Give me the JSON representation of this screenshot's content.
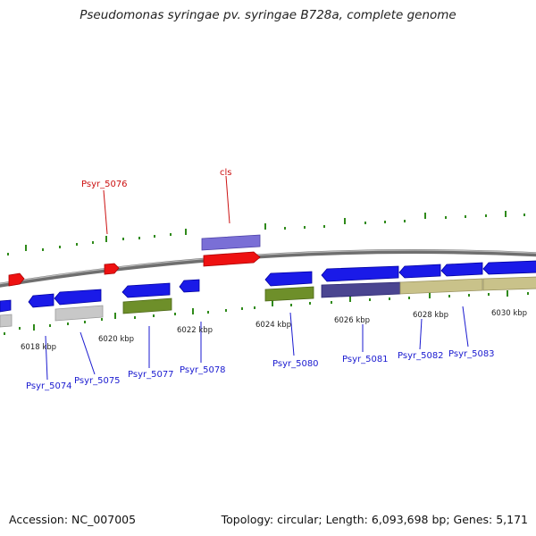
{
  "title": "Pseudomonas syringae pv. syringae B728a, complete genome",
  "footer": {
    "accession": "Accession: NC_007005",
    "summary": "Topology: circular; Length: 6,093,698 bp; Genes: 5,171"
  },
  "colors": {
    "forward_gene_red": "#ee1111",
    "reverse_gene_blue": "#1a1ae8",
    "highlight_purple": "#7a6fd6",
    "olive": "#6e8f2a",
    "khaki": "#c9c28a",
    "navy": "#4a4590",
    "grey_gene": "#c8c8c8",
    "backbone": "#888888",
    "tick_green": "#2f8a1a",
    "label_blue": "#1a1ad0",
    "label_red": "#cc1111"
  },
  "scale_labels": [
    "6018 kbp",
    "6020 kbp",
    "6022 kbp",
    "6024 kbp",
    "6026 kbp",
    "6028 kbp",
    "6030 kbp"
  ],
  "gene_labels": [
    {
      "text": "Psyr_5076",
      "color": "red"
    },
    {
      "text": "cls",
      "color": "red"
    },
    {
      "text": "Psyr_5074",
      "color": "blue"
    },
    {
      "text": "Psyr_5075",
      "color": "blue"
    },
    {
      "text": "Psyr_5077",
      "color": "blue"
    },
    {
      "text": "Psyr_5078",
      "color": "blue"
    },
    {
      "text": "Psyr_5080",
      "color": "blue"
    },
    {
      "text": "Psyr_5081",
      "color": "blue"
    },
    {
      "text": "Psyr_5082",
      "color": "blue"
    },
    {
      "text": "Psyr_5083",
      "color": "blue"
    }
  ]
}
